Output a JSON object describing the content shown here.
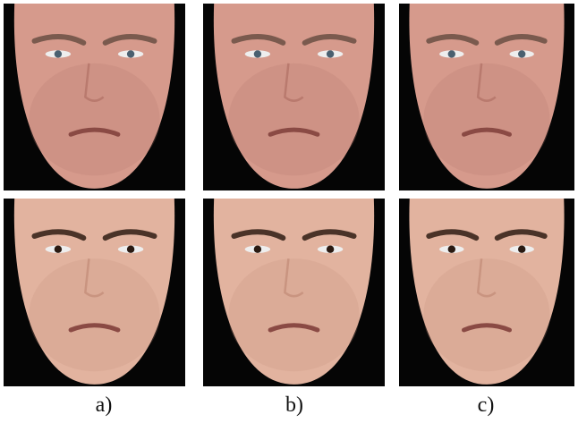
{
  "figure": {
    "labels": [
      "a)",
      "b)",
      "c)"
    ]
  }
}
